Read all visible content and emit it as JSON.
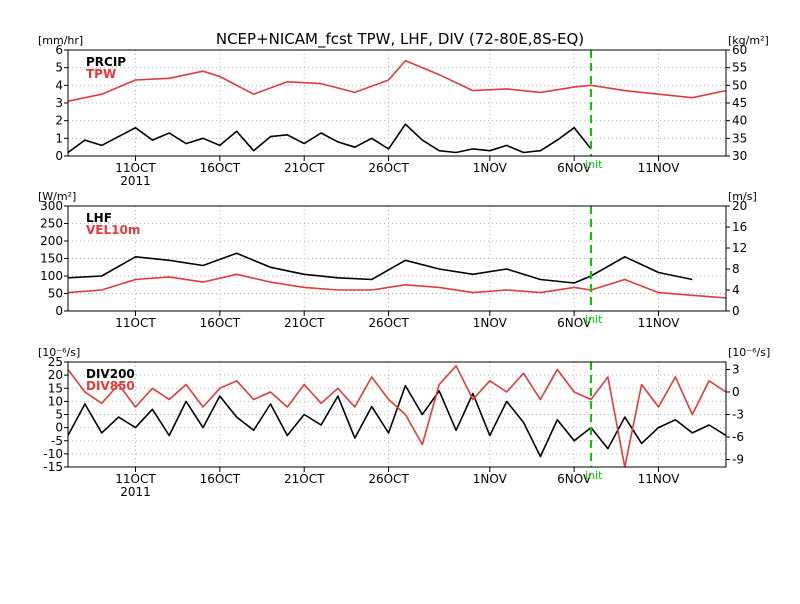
{
  "title": "NCEP+NICAM_fcst TPW, LHF, DIV (72-80E,8S-EQ)",
  "time_axis": {
    "year_label": "2011",
    "ticks": [
      {
        "date": "2011-10-11",
        "label": "11OCT"
      },
      {
        "date": "2011-10-16",
        "label": "16OCT"
      },
      {
        "date": "2011-10-21",
        "label": "21OCT"
      },
      {
        "date": "2011-10-26",
        "label": "26OCT"
      },
      {
        "date": "2011-11-01",
        "label": "1NOV"
      },
      {
        "date": "2011-11-06",
        "label": "6NOV"
      },
      {
        "date": "2011-11-11",
        "label": "11NOV"
      }
    ],
    "range": [
      "2011-10-07",
      "2011-11-15"
    ],
    "init_date": "2011-11-07",
    "init_label": "init",
    "init_color": "#00cc00"
  },
  "chart_data": [
    {
      "type": "line",
      "panel": "top",
      "left_unit": "[mm/hr]",
      "right_unit": "[kg/m²]",
      "left_ylim": [
        0,
        6
      ],
      "left_ticks": [
        0,
        1,
        2,
        3,
        4,
        5,
        6
      ],
      "right_ylim": [
        30,
        60
      ],
      "right_ticks": [
        30,
        35,
        40,
        45,
        50,
        55,
        60
      ],
      "grid": true,
      "legend_position": "top-left",
      "series": [
        {
          "name": "PRCIP",
          "axis": "left",
          "color": "#000000",
          "x": [
            "2011-10-07",
            "2011-10-08",
            "2011-10-09",
            "2011-10-10",
            "2011-10-11",
            "2011-10-12",
            "2011-10-13",
            "2011-10-14",
            "2011-10-15",
            "2011-10-16",
            "2011-10-17",
            "2011-10-18",
            "2011-10-19",
            "2011-10-20",
            "2011-10-21",
            "2011-10-22",
            "2011-10-23",
            "2011-10-24",
            "2011-10-25",
            "2011-10-26",
            "2011-10-27",
            "2011-10-28",
            "2011-10-29",
            "2011-10-30",
            "2011-10-31",
            "2011-11-01",
            "2011-11-02",
            "2011-11-03",
            "2011-11-04",
            "2011-11-05",
            "2011-11-06",
            "2011-11-07"
          ],
          "values": [
            0.2,
            0.9,
            0.6,
            1.1,
            1.6,
            0.9,
            1.3,
            0.7,
            1.0,
            0.6,
            1.4,
            0.3,
            1.1,
            1.2,
            0.7,
            1.3,
            0.8,
            0.5,
            1.0,
            0.4,
            1.8,
            0.9,
            0.3,
            0.2,
            0.4,
            0.3,
            0.6,
            0.2,
            0.3,
            0.9,
            1.6,
            0.4
          ]
        },
        {
          "name": "TPW",
          "axis": "right",
          "color": "#e03c3c",
          "x": [
            "2011-10-07",
            "2011-10-09",
            "2011-10-11",
            "2011-10-13",
            "2011-10-15",
            "2011-10-16",
            "2011-10-18",
            "2011-10-20",
            "2011-10-22",
            "2011-10-24",
            "2011-10-26",
            "2011-10-27",
            "2011-10-29",
            "2011-10-31",
            "2011-11-02",
            "2011-11-04",
            "2011-11-06",
            "2011-11-07",
            "2011-11-09",
            "2011-11-11",
            "2011-11-13",
            "2011-11-15"
          ],
          "values": [
            45.5,
            47.5,
            51.5,
            52.0,
            54.0,
            52.5,
            47.5,
            51.0,
            50.5,
            48.0,
            51.5,
            57.0,
            53.0,
            48.5,
            49.0,
            48.0,
            49.5,
            50.0,
            48.5,
            47.5,
            46.5,
            48.5
          ]
        }
      ]
    },
    {
      "type": "line",
      "panel": "middle",
      "left_unit": "[W/m²]",
      "right_unit": "[m/s]",
      "left_ylim": [
        0,
        300
      ],
      "left_ticks": [
        0,
        50,
        100,
        150,
        200,
        250,
        300
      ],
      "right_ylim": [
        0,
        20
      ],
      "right_ticks": [
        0,
        4,
        8,
        12,
        16,
        20
      ],
      "grid": true,
      "legend_position": "top-left",
      "series": [
        {
          "name": "LHF",
          "axis": "left",
          "color": "#000000",
          "x": [
            "2011-10-07",
            "2011-10-09",
            "2011-10-11",
            "2011-10-13",
            "2011-10-15",
            "2011-10-17",
            "2011-10-19",
            "2011-10-21",
            "2011-10-23",
            "2011-10-25",
            "2011-10-27",
            "2011-10-29",
            "2011-10-31",
            "2011-11-02",
            "2011-11-04",
            "2011-11-06",
            "2011-11-07",
            "2011-11-09",
            "2011-11-11",
            "2011-11-13"
          ],
          "values": [
            95,
            100,
            155,
            145,
            130,
            165,
            125,
            105,
            95,
            90,
            145,
            120,
            105,
            120,
            90,
            80,
            100,
            155,
            110,
            90
          ]
        },
        {
          "name": "VEL10m",
          "axis": "right",
          "color": "#e03c3c",
          "x": [
            "2011-10-07",
            "2011-10-09",
            "2011-10-11",
            "2011-10-13",
            "2011-10-15",
            "2011-10-17",
            "2011-10-19",
            "2011-10-21",
            "2011-10-23",
            "2011-10-25",
            "2011-10-27",
            "2011-10-29",
            "2011-10-31",
            "2011-11-02",
            "2011-11-04",
            "2011-11-06",
            "2011-11-07",
            "2011-11-09",
            "2011-11-11",
            "2011-11-13",
            "2011-11-15"
          ],
          "values": [
            3.5,
            4.0,
            6.0,
            6.5,
            5.5,
            7.0,
            5.5,
            4.5,
            4.0,
            4.0,
            5.0,
            4.5,
            3.5,
            4.0,
            3.5,
            4.5,
            4.0,
            6.0,
            3.5,
            3.0,
            2.5
          ]
        }
      ]
    },
    {
      "type": "line",
      "panel": "bottom",
      "left_unit": "[10⁻⁶/s]",
      "right_unit": "[10⁻⁶/s]",
      "left_ylim": [
        -15,
        25
      ],
      "left_ticks": [
        -15,
        -10,
        -5,
        0,
        5,
        10,
        15,
        20,
        25
      ],
      "right_ylim": [
        -10,
        4
      ],
      "right_ticks": [
        -9,
        -6,
        -3,
        0,
        3
      ],
      "grid": true,
      "legend_position": "top-left",
      "series": [
        {
          "name": "DIV200",
          "axis": "left",
          "color": "#000000",
          "x": [
            "2011-10-07",
            "2011-10-08",
            "2011-10-09",
            "2011-10-10",
            "2011-10-11",
            "2011-10-12",
            "2011-10-13",
            "2011-10-14",
            "2011-10-15",
            "2011-10-16",
            "2011-10-17",
            "2011-10-18",
            "2011-10-19",
            "2011-10-20",
            "2011-10-21",
            "2011-10-22",
            "2011-10-23",
            "2011-10-24",
            "2011-10-25",
            "2011-10-26",
            "2011-10-27",
            "2011-10-28",
            "2011-10-29",
            "2011-10-30",
            "2011-10-31",
            "2011-11-01",
            "2011-11-02",
            "2011-11-03",
            "2011-11-04",
            "2011-11-05",
            "2011-11-06",
            "2011-11-07",
            "2011-11-08",
            "2011-11-09",
            "2011-11-10",
            "2011-11-11",
            "2011-11-12",
            "2011-11-13",
            "2011-11-14",
            "2011-11-15"
          ],
          "values": [
            -3,
            9,
            -2,
            4,
            0,
            7,
            -3,
            10,
            0,
            12,
            4,
            -1,
            9,
            -3,
            5,
            1,
            12,
            -4,
            8,
            -2,
            16,
            5,
            14,
            -1,
            13,
            -3,
            10,
            2,
            -11,
            3,
            -5,
            0,
            -8,
            4,
            -6,
            0,
            3,
            -2,
            1,
            -3
          ]
        },
        {
          "name": "DIV850",
          "axis": "right",
          "color": "#e03c3c",
          "x": [
            "2011-10-07",
            "2011-10-08",
            "2011-10-09",
            "2011-10-10",
            "2011-10-11",
            "2011-10-12",
            "2011-10-13",
            "2011-10-14",
            "2011-10-15",
            "2011-10-16",
            "2011-10-17",
            "2011-10-18",
            "2011-10-19",
            "2011-10-20",
            "2011-10-21",
            "2011-10-22",
            "2011-10-23",
            "2011-10-24",
            "2011-10-25",
            "2011-10-26",
            "2011-10-27",
            "2011-10-28",
            "2011-10-29",
            "2011-10-30",
            "2011-10-31",
            "2011-11-01",
            "2011-11-02",
            "2011-11-03",
            "2011-11-04",
            "2011-11-05",
            "2011-11-06",
            "2011-11-07",
            "2011-11-08",
            "2011-11-09",
            "2011-11-10",
            "2011-11-11",
            "2011-11-12",
            "2011-11-13",
            "2011-11-14",
            "2011-11-15"
          ],
          "values": [
            3.0,
            0.0,
            -1.5,
            1.0,
            -2.0,
            0.5,
            -1.0,
            1.0,
            -2.0,
            0.5,
            1.5,
            -1.0,
            0.0,
            -2.0,
            1.0,
            -1.5,
            0.5,
            -2.0,
            2.0,
            -1.0,
            -3.0,
            -7.0,
            1.0,
            3.5,
            -1.0,
            1.5,
            0.0,
            2.5,
            -1.0,
            3.0,
            0.0,
            -1.0,
            2.0,
            -10.0,
            1.0,
            -2.0,
            2.0,
            -3.0,
            1.5,
            0.0
          ]
        }
      ]
    }
  ]
}
